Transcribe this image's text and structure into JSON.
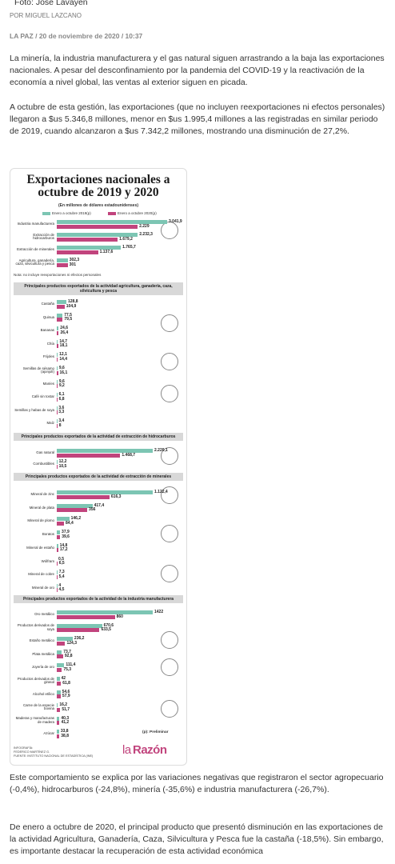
{
  "photo_credit": "Foto: José Lavayén",
  "byline": "POR MIGUEL LAZCANO",
  "dateline": "LA PAZ / 20 de noviembre de 2020 / 10:37",
  "paragraphs": [
    "La minería, la industria manufacturera y el gas natural siguen arrastrando a la baja las exportaciones nacionales. A pesar del desconfinamiento por la pandemia del COVID-19 y la reactivación de la economía a nivel global, las ventas al exterior siguen en picada.",
    "A octubre de esta gestión, las exportaciones (que no incluyen reexportaciones ni efectos personales) llegaron a $us 5.346,8 millones, menor en $us 1.995,4 millones a las registradas en similar periodo de 2019, cuando alcanzaron a $us 7.342,2 millones, mostrando una disminución de 27,2%.",
    "Este comportamiento se explica por las variaciones negativas que registraron el sector agropecuario (-0,4%), hidrocarburos (-24,8%), minería (-35,6%) e industria manufacturera (-26,7%).",
    "De enero a octubre de 2020, el principal producto que presentó disminución en las exportaciones de la actividad Agricultura, Ganadería, Caza, Silvicultura y Pesca fue la castaña (-18,5%). Sin embargo, es importante destacar la recuperación de esta actividad económica"
  ],
  "infographic": {
    "type": "bar",
    "title": "Exportaciones nacionales a octubre de 2019 y 2020",
    "subtitle": "(En millones de dólares estadounidenses)",
    "legend": [
      "Enero a octubre 2019(p)",
      "Enero a octubre 2020(p)"
    ],
    "colors": [
      "#7cc5b3",
      "#c1447d"
    ],
    "sections": [
      {
        "rows": [
          {
            "label": "Industria manufacturera",
            "values": [
              3041.9,
              2229
            ],
            "value_labels": [
              "3.041,9",
              "2.229"
            ]
          },
          {
            "label": "Extracción de hidrocarburos",
            "values": [
              2232.3,
              1679.2
            ],
            "value_labels": [
              "2.232,3",
              "1.679,2"
            ]
          },
          {
            "label": "Extracción de minerales",
            "values": [
              1765.7,
              1137.6
            ],
            "value_labels": [
              "1.765,7",
              "1.137,6"
            ]
          },
          {
            "label": "Agricultura, ganadería, caza, silvicultura y pesca",
            "values": [
              302.3,
              301
            ],
            "value_labels": [
              "302,3",
              "301"
            ]
          }
        ],
        "note": "Nota: no incluye reexportaciones ni efectos personales"
      },
      {
        "header": "Principales productos exportados de la actividad agricultura, ganadería, caza, silvicultura y pesca",
        "rows": [
          {
            "label": "Castaña",
            "values": [
              128.8,
              104.9
            ],
            "value_labels": [
              "128,8",
              "104,9"
            ]
          },
          {
            "label": "Quinua",
            "values": [
              77.5,
              79.5
            ],
            "value_labels": [
              "77,5",
              "79,5"
            ]
          },
          {
            "label": "Bananas",
            "values": [
              24.6,
              26.4
            ],
            "value_labels": [
              "24,6",
              "26,4"
            ]
          },
          {
            "label": "Chía",
            "values": [
              14.7,
              18.1
            ],
            "value_labels": [
              "14,7",
              "18,1"
            ]
          },
          {
            "label": "Frijoles",
            "values": [
              12.1,
              14.4
            ],
            "value_labels": [
              "12,1",
              "14,4"
            ]
          },
          {
            "label": "Semillas de sésamo (ajonjolí)",
            "values": [
              9.6,
              16.1
            ],
            "value_labels": [
              "9,6",
              "16,1"
            ]
          },
          {
            "label": "Maníes",
            "values": [
              9.6,
              9.2
            ],
            "value_labels": [
              "9,6",
              "9,2"
            ]
          },
          {
            "label": "Café sin tostar",
            "values": [
              6.1,
              6.8
            ],
            "value_labels": [
              "6,1",
              "6,8"
            ]
          },
          {
            "label": "Semillas y habas de soya",
            "values": [
              3.6,
              3.3
            ],
            "value_labels": [
              "3,6",
              "3,3"
            ]
          },
          {
            "label": "Maíz",
            "values": [
              3.4,
              8
            ],
            "value_labels": [
              "3,4",
              "8"
            ]
          }
        ]
      },
      {
        "header": "Principales productos exportados de la actividad de extracción de hidrocarburos",
        "rows": [
          {
            "label": "Gas natural",
            "values": [
              2220.1,
              1468.7
            ],
            "value_labels": [
              "2.220,1",
              "1.468,7"
            ]
          },
          {
            "label": "Combustibles",
            "values": [
              12.2,
              10.5
            ],
            "value_labels": [
              "12,2",
              "10,5"
            ]
          }
        ]
      },
      {
        "header": "Principales productos exportados de la actividad de extracción de minerales",
        "rows": [
          {
            "label": "Mineral de zinc",
            "values": [
              1122.4,
              616.3
            ],
            "value_labels": [
              "1.122,4",
              "616,3"
            ]
          },
          {
            "label": "Mineral de plata",
            "values": [
              417.4,
              356
            ],
            "value_labels": [
              "417,4",
              "356"
            ]
          },
          {
            "label": "Mineral de plomo",
            "values": [
              146.2,
              84.4
            ],
            "value_labels": [
              "146,2",
              "84,4"
            ]
          },
          {
            "label": "Boratos",
            "values": [
              37.9,
              39.6
            ],
            "value_labels": [
              "37,9",
              "39,6"
            ]
          },
          {
            "label": "Mineral de estaño",
            "values": [
              14.8,
              17.2
            ],
            "value_labels": [
              "14,8",
              "17,2"
            ]
          },
          {
            "label": "Wólfram",
            "values": [
              0.5,
              6.5
            ],
            "value_labels": [
              "0,5",
              "6,5"
            ]
          },
          {
            "label": "Mineral de cobre",
            "values": [
              7.3,
              5.4
            ],
            "value_labels": [
              "7,3",
              "5,4"
            ]
          },
          {
            "label": "Mineral de oro",
            "values": [
              4,
              4.5
            ],
            "value_labels": [
              "4",
              "4,5"
            ]
          }
        ]
      },
      {
        "header": "Principales productos exportados de la actividad de la industria manufacturera",
        "rows": [
          {
            "label": "Oro metálico",
            "values": [
              1422,
              860
            ],
            "value_labels": [
              "1422",
              "860"
            ]
          },
          {
            "label": "Productos derivados de soya",
            "values": [
              670.6,
              633.5
            ],
            "value_labels": [
              "670,6",
              "633,5"
            ]
          },
          {
            "label": "Estaño metálico",
            "values": [
              236.2,
              124.3
            ],
            "value_labels": [
              "236,2",
              "124,3"
            ]
          },
          {
            "label": "Plata metálica",
            "values": [
              73.7,
              92.8
            ],
            "value_labels": [
              "73,7",
              "92,8"
            ]
          },
          {
            "label": "Joyería de oro",
            "values": [
              111.4,
              75.3
            ],
            "value_labels": [
              "111,4",
              "75,3"
            ]
          },
          {
            "label": "Productos derivados de girasol",
            "values": [
              42,
              61.8
            ],
            "value_labels": [
              "42",
              "61,8"
            ]
          },
          {
            "label": "Alcohol etílico",
            "values": [
              54.6,
              57.9
            ],
            "value_labels": [
              "54,6",
              "57,9"
            ]
          },
          {
            "label": "Carne de la especie bovina",
            "values": [
              16.2,
              51.7
            ],
            "value_labels": [
              "16,2",
              "51,7"
            ]
          },
          {
            "label": "Maderas y manufacturas de madera",
            "values": [
              40.3,
              41.2
            ],
            "value_labels": [
              "40,3",
              "41,2"
            ]
          },
          {
            "label": "Azúcar",
            "values": [
              33.8,
              38.8
            ],
            "value_labels": [
              "33,8",
              "38,8"
            ]
          }
        ]
      }
    ],
    "preliminary": "(p): Preliminar",
    "credits": [
      "INFOGRAFÍA:",
      "FEDERICO MARTÍNEZ G.",
      "FUENTE: INSTITUTO NACIONAL DE ESTADÍSTICA (INE)"
    ],
    "logo": [
      "la",
      "Razón"
    ]
  }
}
